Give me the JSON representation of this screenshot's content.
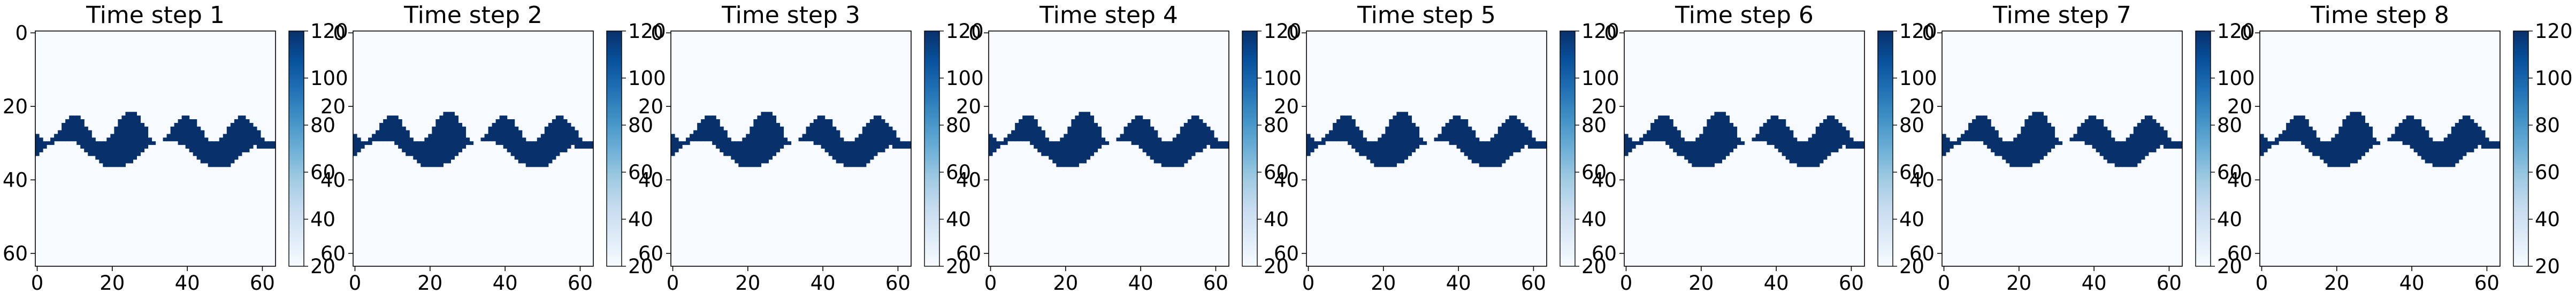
{
  "chart_data": [
    {
      "type": "heatmap",
      "title": "Time step 1",
      "grid_size": [
        64,
        64
      ],
      "xlim": [
        0,
        63
      ],
      "ylim": [
        63,
        0
      ],
      "x_ticks": [
        "0",
        "20",
        "40",
        "60"
      ],
      "y_ticks": [
        "0",
        "20",
        "40",
        "60"
      ],
      "colorbar": {
        "colormap": "Blues",
        "range": [
          20,
          120
        ],
        "ticks": [
          "20",
          "40",
          "60",
          "80",
          "100",
          "120"
        ]
      },
      "band": {
        "value": 120,
        "background": 20,
        "rows_top": 22,
        "rows_bottom": 37
      }
    },
    {
      "type": "heatmap",
      "title": "Time step 2",
      "grid_size": [
        64,
        64
      ],
      "xlim": [
        0,
        63
      ],
      "ylim": [
        63,
        0
      ],
      "x_ticks": [
        "0",
        "20",
        "40",
        "60"
      ],
      "y_ticks": [
        "0",
        "20",
        "40",
        "60"
      ],
      "colorbar": {
        "colormap": "Blues",
        "range": [
          20,
          120
        ],
        "ticks": [
          "20",
          "40",
          "60",
          "80",
          "100",
          "120"
        ]
      },
      "band": {
        "value": 120,
        "background": 20,
        "rows_top": 22,
        "rows_bottom": 37
      }
    },
    {
      "type": "heatmap",
      "title": "Time step 3",
      "grid_size": [
        64,
        64
      ],
      "xlim": [
        0,
        63
      ],
      "ylim": [
        63,
        0
      ],
      "x_ticks": [
        "0",
        "20",
        "40",
        "60"
      ],
      "y_ticks": [
        "0",
        "20",
        "40",
        "60"
      ],
      "colorbar": {
        "colormap": "Blues",
        "range": [
          20,
          120
        ],
        "ticks": [
          "20",
          "40",
          "60",
          "80",
          "100",
          "120"
        ]
      },
      "band": {
        "value": 120,
        "background": 20,
        "rows_top": 22,
        "rows_bottom": 37
      }
    },
    {
      "type": "heatmap",
      "title": "Time step 4",
      "grid_size": [
        64,
        64
      ],
      "xlim": [
        0,
        63
      ],
      "ylim": [
        63,
        0
      ],
      "x_ticks": [
        "0",
        "20",
        "40",
        "60"
      ],
      "y_ticks": [
        "0",
        "20",
        "40",
        "60"
      ],
      "colorbar": {
        "colormap": "Blues",
        "range": [
          20,
          120
        ],
        "ticks": [
          "20",
          "40",
          "60",
          "80",
          "100",
          "120"
        ]
      },
      "band": {
        "value": 120,
        "background": 20,
        "rows_top": 22,
        "rows_bottom": 37
      }
    },
    {
      "type": "heatmap",
      "title": "Time step 5",
      "grid_size": [
        64,
        64
      ],
      "xlim": [
        0,
        63
      ],
      "ylim": [
        63,
        0
      ],
      "x_ticks": [
        "0",
        "20",
        "40",
        "60"
      ],
      "y_ticks": [
        "0",
        "20",
        "40",
        "60"
      ],
      "colorbar": {
        "colormap": "Blues",
        "range": [
          20,
          120
        ],
        "ticks": [
          "20",
          "40",
          "60",
          "80",
          "100",
          "120"
        ]
      },
      "band": {
        "value": 120,
        "background": 20,
        "rows_top": 22,
        "rows_bottom": 37
      }
    },
    {
      "type": "heatmap",
      "title": "Time step 6",
      "grid_size": [
        64,
        64
      ],
      "xlim": [
        0,
        63
      ],
      "ylim": [
        63,
        0
      ],
      "x_ticks": [
        "0",
        "20",
        "40",
        "60"
      ],
      "y_ticks": [
        "0",
        "20",
        "40",
        "60"
      ],
      "colorbar": {
        "colormap": "Blues",
        "range": [
          20,
          120
        ],
        "ticks": [
          "20",
          "40",
          "60",
          "80",
          "100",
          "120"
        ]
      },
      "band": {
        "value": 120,
        "background": 20,
        "rows_top": 22,
        "rows_bottom": 37
      }
    },
    {
      "type": "heatmap",
      "title": "Time step 7",
      "grid_size": [
        64,
        64
      ],
      "xlim": [
        0,
        63
      ],
      "ylim": [
        63,
        0
      ],
      "x_ticks": [
        "0",
        "20",
        "40",
        "60"
      ],
      "y_ticks": [
        "0",
        "20",
        "40",
        "60"
      ],
      "colorbar": {
        "colormap": "Blues",
        "range": [
          20,
          120
        ],
        "ticks": [
          "20",
          "40",
          "60",
          "80",
          "100",
          "120"
        ]
      },
      "band": {
        "value": 120,
        "background": 20,
        "rows_top": 22,
        "rows_bottom": 37
      }
    },
    {
      "type": "heatmap",
      "title": "Time step 8",
      "grid_size": [
        64,
        64
      ],
      "xlim": [
        0,
        63
      ],
      "ylim": [
        63,
        0
      ],
      "x_ticks": [
        "0",
        "20",
        "40",
        "60"
      ],
      "y_ticks": [
        "0",
        "20",
        "40",
        "60"
      ],
      "colorbar": {
        "colormap": "Blues",
        "range": [
          20,
          120
        ],
        "ticks": [
          "20",
          "40",
          "60",
          "80",
          "100",
          "120"
        ]
      },
      "band": {
        "value": 120,
        "background": 20,
        "rows_top": 22,
        "rows_bottom": 37
      }
    }
  ],
  "colors": {
    "background_cell": "#f7fbff",
    "band_cell": "#08306b",
    "colormap_stops": [
      "#f7fbff",
      "#deebf7",
      "#c6dbef",
      "#9ecae1",
      "#6baed6",
      "#4292c6",
      "#2171b5",
      "#08519c",
      "#08306b"
    ]
  }
}
